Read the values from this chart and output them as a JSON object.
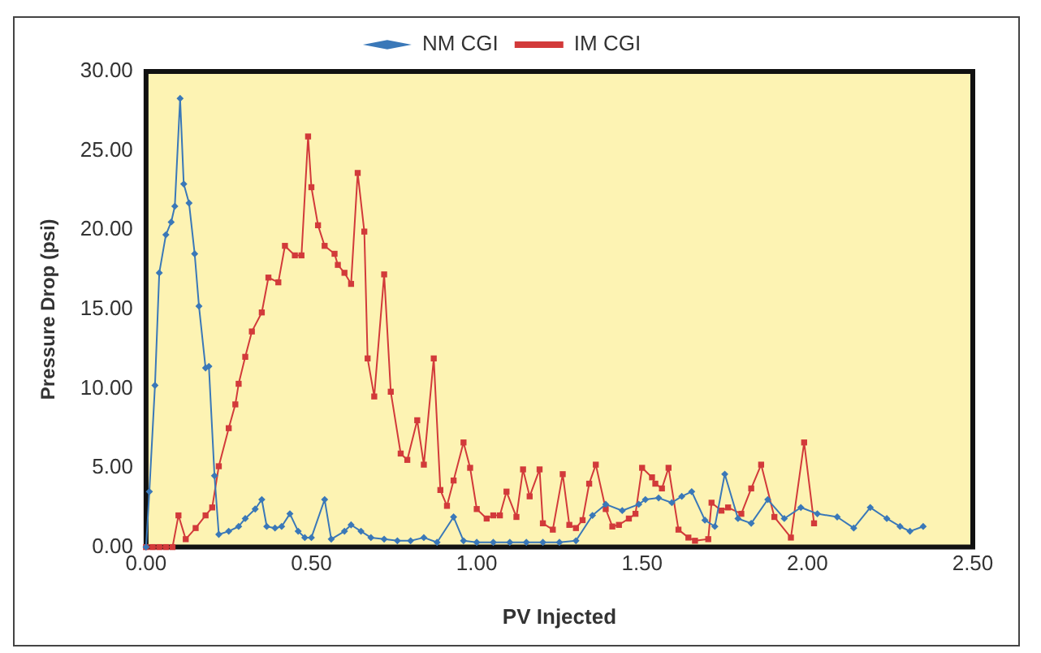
{
  "chart_data": {
    "type": "line",
    "xlabel": "PV Injected",
    "ylabel": "Pressure Drop (psi)",
    "xlim": [
      0,
      2.5
    ],
    "xticks": [
      {
        "value": 0,
        "label": "0.00"
      },
      {
        "value": 0.5,
        "label": "0.50"
      },
      {
        "value": 1,
        "label": "1.00"
      },
      {
        "value": 1.5,
        "label": "1.50"
      },
      {
        "value": 2,
        "label": "2.00"
      },
      {
        "value": 2.5,
        "label": "2.50"
      }
    ],
    "ylim": [
      0,
      30
    ],
    "yticks": [
      {
        "value": 0,
        "label": "0.00"
      },
      {
        "value": 5,
        "label": "5.00"
      },
      {
        "value": 10,
        "label": "10.00"
      },
      {
        "value": 15,
        "label": "15.00"
      },
      {
        "value": 20,
        "label": "20.00"
      },
      {
        "value": 25,
        "label": "25.00"
      },
      {
        "value": 30,
        "label": "30.00"
      }
    ],
    "grid": false,
    "legend": "top",
    "line_style": "solid",
    "series": [
      {
        "name": "NM CGI",
        "color": "#3a78b8",
        "marker": "diamond",
        "x": [
          0,
          0.01,
          0.027,
          0.04,
          0.06,
          0.076,
          0.087,
          0.103,
          0.114,
          0.13,
          0.147,
          0.16,
          0.18,
          0.19,
          0.207,
          0.22,
          0.25,
          0.28,
          0.3,
          0.33,
          0.35,
          0.365,
          0.39,
          0.41,
          0.435,
          0.46,
          0.48,
          0.5,
          0.54,
          0.56,
          0.6,
          0.62,
          0.65,
          0.68,
          0.72,
          0.76,
          0.8,
          0.84,
          0.88,
          0.93,
          0.96,
          1.0,
          1.05,
          1.1,
          1.15,
          1.2,
          1.25,
          1.3,
          1.35,
          1.39,
          1.44,
          1.49,
          1.51,
          1.55,
          1.59,
          1.62,
          1.65,
          1.69,
          1.72,
          1.75,
          1.79,
          1.83,
          1.88,
          1.93,
          1.98,
          2.03,
          2.09,
          2.14,
          2.19,
          2.24,
          2.28,
          2.31,
          2.35
        ],
        "values": [
          0,
          3.5,
          10.2,
          17.3,
          19.7,
          20.5,
          21.5,
          28.3,
          22.9,
          21.7,
          18.5,
          15.2,
          11.3,
          11.4,
          4.5,
          0.8,
          1.0,
          1.3,
          1.8,
          2.4,
          3.0,
          1.3,
          1.2,
          1.3,
          2.1,
          1.0,
          0.6,
          0.6,
          3.0,
          0.5,
          1.0,
          1.4,
          1.0,
          0.6,
          0.5,
          0.4,
          0.4,
          0.6,
          0.3,
          1.9,
          0.4,
          0.3,
          0.3,
          0.3,
          0.3,
          0.3,
          0.3,
          0.4,
          2.0,
          2.7,
          2.3,
          2.7,
          3.0,
          3.1,
          2.8,
          3.2,
          3.5,
          1.7,
          1.3,
          4.6,
          1.8,
          1.5,
          3.0,
          1.8,
          2.5,
          2.1,
          1.9,
          1.2,
          2.5,
          1.8,
          1.3,
          1.0,
          1.3
        ]
      },
      {
        "name": "IM CGI",
        "color": "#d23a3a",
        "marker": "square",
        "x": [
          0,
          0.02,
          0.04,
          0.06,
          0.08,
          0.098,
          0.12,
          0.15,
          0.18,
          0.2,
          0.22,
          0.25,
          0.27,
          0.28,
          0.3,
          0.32,
          0.35,
          0.37,
          0.4,
          0.42,
          0.45,
          0.47,
          0.49,
          0.5,
          0.52,
          0.54,
          0.57,
          0.58,
          0.6,
          0.62,
          0.64,
          0.66,
          0.67,
          0.69,
          0.72,
          0.74,
          0.77,
          0.79,
          0.82,
          0.84,
          0.87,
          0.89,
          0.91,
          0.93,
          0.96,
          0.98,
          1.0,
          1.03,
          1.05,
          1.07,
          1.09,
          1.12,
          1.14,
          1.16,
          1.19,
          1.2,
          1.23,
          1.26,
          1.28,
          1.3,
          1.32,
          1.34,
          1.36,
          1.39,
          1.41,
          1.43,
          1.46,
          1.48,
          1.5,
          1.53,
          1.54,
          1.56,
          1.58,
          1.61,
          1.64,
          1.66,
          1.7,
          1.71,
          1.74,
          1.76,
          1.8,
          1.83,
          1.86,
          1.9,
          1.95,
          1.99,
          2.02
        ],
        "values": [
          0,
          0,
          0,
          0,
          0,
          2.0,
          0.5,
          1.2,
          2.0,
          2.5,
          5.1,
          7.5,
          9.0,
          10.3,
          12.0,
          13.6,
          14.8,
          17.0,
          16.7,
          19.0,
          18.4,
          18.4,
          25.9,
          22.7,
          20.3,
          19.0,
          18.5,
          17.8,
          17.3,
          16.6,
          23.6,
          19.9,
          11.9,
          9.5,
          17.2,
          9.8,
          5.9,
          5.5,
          8.0,
          5.2,
          11.9,
          3.6,
          2.6,
          4.2,
          6.6,
          5.0,
          2.4,
          1.8,
          2.0,
          2.0,
          3.5,
          1.9,
          4.9,
          3.2,
          4.9,
          1.5,
          1.1,
          4.6,
          1.4,
          1.2,
          1.7,
          4.0,
          5.2,
          2.4,
          1.3,
          1.4,
          1.8,
          2.1,
          5.0,
          4.4,
          4.0,
          3.7,
          5.0,
          1.1,
          0.6,
          0.4,
          0.5,
          2.8,
          2.3,
          2.5,
          2.1,
          3.7,
          5.2,
          1.9,
          0.6,
          6.6,
          1.5
        ]
      }
    ]
  }
}
